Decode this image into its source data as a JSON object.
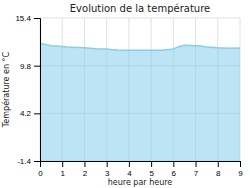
{
  "chart_data": {
    "type": "area",
    "title": "Evolution de la température",
    "x_label": "heure par heure",
    "y_label": "Température en °C",
    "x": [
      0.0,
      0.15,
      0.3,
      0.5,
      0.8,
      1.0,
      1.2,
      1.5,
      2.0,
      2.5,
      3.0,
      3.2,
      3.5,
      4.0,
      4.5,
      5.0,
      5.5,
      6.0,
      6.2,
      6.4,
      6.5,
      7.0,
      7.2,
      7.5,
      8.0,
      8.5,
      9.0
    ],
    "values": [
      12.4,
      12.35,
      12.25,
      12.15,
      12.1,
      12.05,
      12.0,
      11.95,
      11.9,
      11.8,
      11.75,
      11.7,
      11.65,
      11.62,
      11.6,
      11.6,
      11.62,
      11.75,
      12.0,
      12.15,
      12.2,
      12.15,
      12.1,
      12.0,
      11.9,
      11.85,
      11.88
    ],
    "color": "#87ceeb",
    "xlim": [
      0,
      9
    ],
    "ylim": [
      -1.4,
      15.4
    ],
    "xticks": [
      0,
      1,
      2,
      3,
      4,
      5,
      6,
      7,
      8,
      9
    ],
    "yticks": [
      -1.4,
      4.2,
      9.8,
      15.4
    ],
    "grid": true
  }
}
